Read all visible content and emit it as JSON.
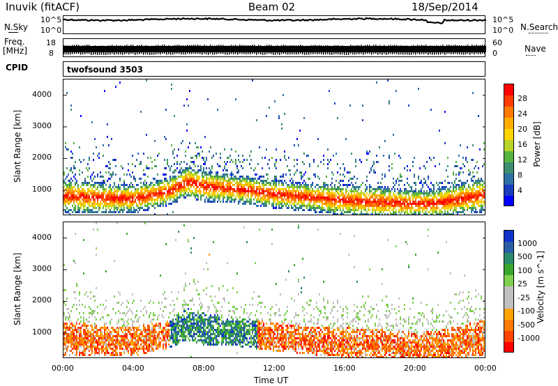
{
  "header": {
    "title": "Inuvik (fitACF)",
    "beam": "Beam 02",
    "date": "18/Sep/2014"
  },
  "noise_panel": {
    "left_label": "N.Sky",
    "right_label": "N.Search",
    "left_ticks": [
      "10^5",
      "10^0"
    ],
    "right_ticks": [
      "10^5",
      "10^0"
    ]
  },
  "freq_panel": {
    "left_label_1": "Freq.",
    "left_label_2": "[MHz]",
    "right_label": "Nave",
    "left_ticks": [
      "18",
      "8"
    ],
    "right_ticks": [
      "60",
      "0"
    ]
  },
  "cpid_panel": {
    "label": "CPID",
    "program": "twofsound 3503"
  },
  "chart_data": [
    {
      "type": "heatmap",
      "panel": "power",
      "ylabel": "Slant Range [km]",
      "xlabel": "Time UT",
      "xlim_hours": [
        0,
        24
      ],
      "ylim": [
        180,
        4500
      ],
      "y_ticks": [
        1000,
        2000,
        3000,
        4000
      ],
      "x_ticks": [
        "00:00",
        "04:00",
        "08:00",
        "12:00",
        "16:00",
        "20:00",
        "00:00"
      ],
      "colorbar_label": "Power [dB]",
      "colorbar_ticks": [
        "28",
        "24",
        "20",
        "16",
        "12",
        "8",
        "4"
      ],
      "colorscale": [
        "#0000ff",
        "#1a3cbf",
        "#2f6fa5",
        "#3d8c6e",
        "#58b33f",
        "#b8d42a",
        "#ffd400",
        "#ffae00",
        "#ff7a00",
        "#ff3b00",
        "#ff0000"
      ],
      "main_echo_band": {
        "description_hours": [
          0,
          2,
          4,
          6,
          7,
          8,
          10,
          12,
          14,
          16,
          18,
          20,
          21,
          22,
          24
        ],
        "center_km": [
          850,
          780,
          760,
          1000,
          1300,
          1150,
          1050,
          900,
          800,
          700,
          650,
          600,
          620,
          700,
          900
        ],
        "width_km": [
          550,
          500,
          450,
          450,
          500,
          500,
          450,
          450,
          450,
          500,
          500,
          450,
          450,
          500,
          550
        ]
      }
    },
    {
      "type": "heatmap",
      "panel": "velocity",
      "ylabel": "Slant Range [km]",
      "xlabel": "Time UT",
      "xlim_hours": [
        0,
        24
      ],
      "ylim": [
        180,
        4500
      ],
      "y_ticks": [
        1000,
        2000,
        3000,
        4000
      ],
      "x_ticks": [
        "00:00",
        "04:00",
        "08:00",
        "12:00",
        "16:00",
        "20:00",
        "00:00"
      ],
      "colorbar_label": "Velocity [m s^-1]",
      "colorbar_ticks": [
        "1000",
        "500",
        "100",
        "25",
        "-25",
        "-100",
        "-500",
        "-1000"
      ],
      "colorscale": [
        "#ff0000",
        "#ff4400",
        "#ff7a00",
        "#ffa200",
        "#bfbfbf",
        "#bfbfbf",
        "#7fd04f",
        "#3aa62e",
        "#2a8a6b",
        "#2a5fa8",
        "#1133cc"
      ],
      "main_echo_band": {
        "description_hours": [
          0,
          2,
          4,
          6,
          7,
          8,
          10,
          12,
          14,
          16,
          18,
          20,
          21,
          22,
          24
        ],
        "center_km": [
          850,
          780,
          760,
          1000,
          1300,
          1150,
          1050,
          900,
          800,
          700,
          650,
          600,
          620,
          700,
          900
        ],
        "width_km": [
          550,
          500,
          450,
          450,
          500,
          500,
          450,
          450,
          450,
          500,
          500,
          450,
          450,
          500,
          550
        ]
      }
    }
  ],
  "x_axis_title": "Time UT"
}
